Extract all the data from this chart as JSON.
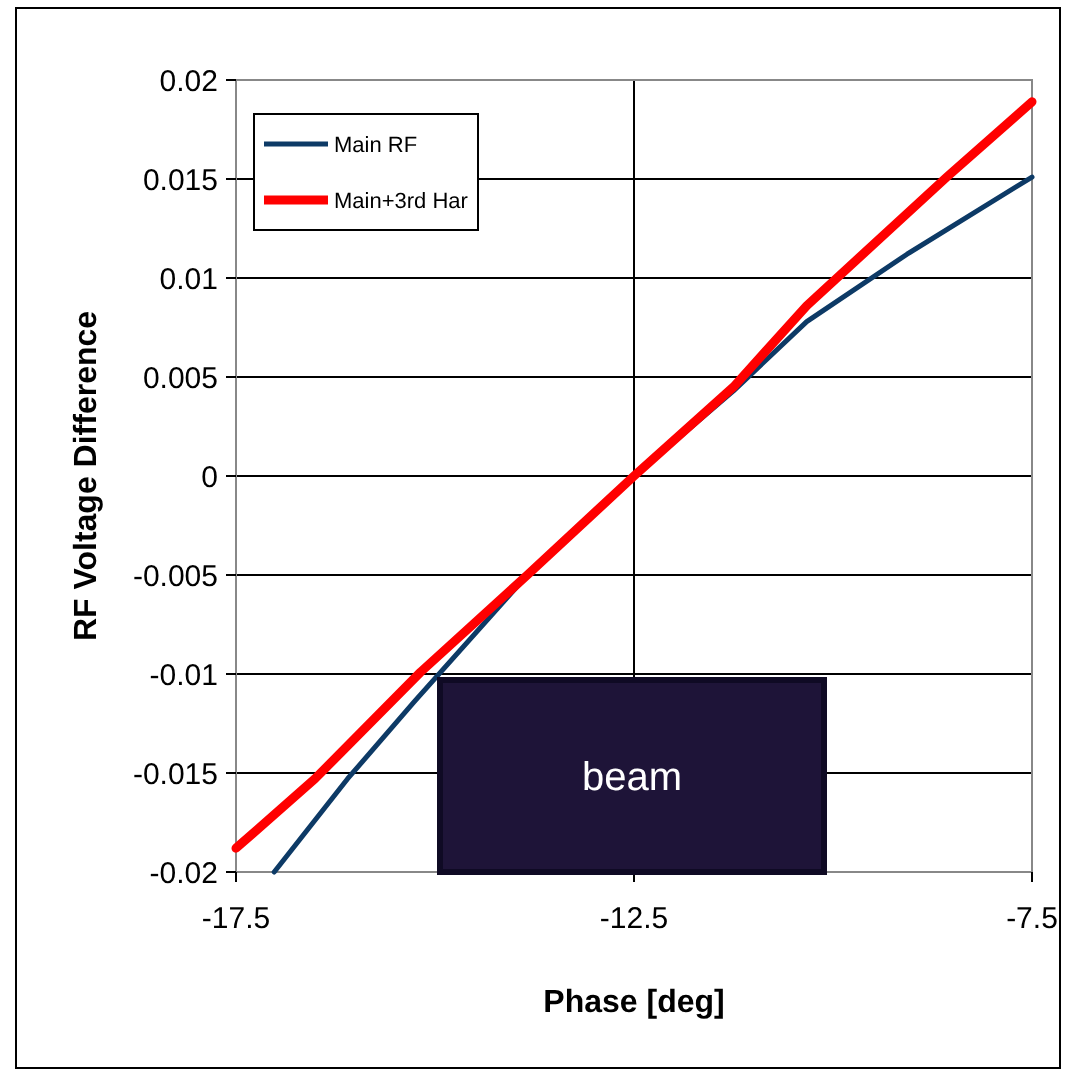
{
  "chart_data": {
    "type": "line",
    "xlabel": "Phase [deg]",
    "ylabel": "RF Voltage Difference",
    "xlim": [
      -17.5,
      -7.5
    ],
    "xticks": [
      -17.5,
      -12.5,
      -7.5
    ],
    "ylim": [
      -0.02,
      0.02
    ],
    "yticks": [
      -0.02,
      -0.015,
      -0.01,
      -0.005,
      0,
      0.005,
      0.01,
      0.015,
      0.02
    ],
    "grid": true,
    "legend": "top left",
    "marker": "none",
    "line_style": "solid",
    "annotations": [
      "beam"
    ],
    "series": [
      {
        "name": "Main RF",
        "color": "#0d3a66",
        "x": [
          -17.02,
          -16.1,
          -15.26,
          -13.84,
          -12.5,
          -11.25,
          -10.33,
          -9.07,
          -7.5
        ],
        "values": [
          -0.02,
          -0.0153,
          -0.0114,
          -0.005,
          0,
          0.0043,
          0.0078,
          0.0112,
          0.0151
        ]
      },
      {
        "name": "Main+3rd Har",
        "color": "#ff0000",
        "x": [
          -17.5,
          -16.51,
          -15.18,
          -13.84,
          -12.5,
          -11.25,
          -10.33,
          -8.57,
          -7.5
        ],
        "values": [
          -0.0188,
          -0.0153,
          -0.0099,
          -0.005,
          0,
          0.0045,
          0.0086,
          0.0151,
          0.0189
        ]
      }
    ]
  }
}
